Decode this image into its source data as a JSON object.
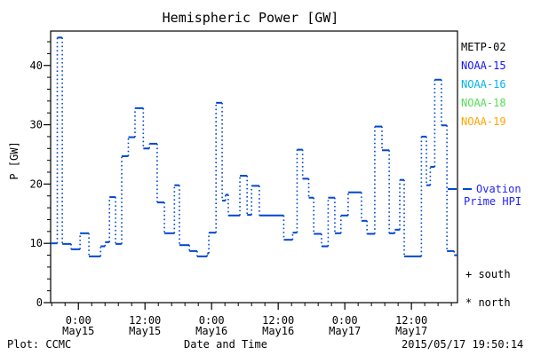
{
  "header": {
    "title": "Hemispheric Power [GW]"
  },
  "axes": {
    "ylabel": "P [GW]",
    "xlabel": "Date and Time"
  },
  "footer": {
    "plot_credit": "Plot: CCMC",
    "timestamp": "2015/05/17 19:50:14"
  },
  "legend": {
    "satellites": [
      {
        "label": "METP-02",
        "color": "#000000"
      },
      {
        "label": "NOAA-15",
        "color": "#1414ff"
      },
      {
        "label": "NOAA-16",
        "color": "#00b4f0"
      },
      {
        "label": "NOAA-18",
        "color": "#55dd55"
      },
      {
        "label": "NOAA-19",
        "color": "#ffa500"
      }
    ],
    "line_label_line1": "Ovation",
    "line_label_line2": "Prime HPI",
    "line_label_color": "#2222ff",
    "line_sample_color": "#0047d0",
    "south_marker": "+ south",
    "north_marker": "* north"
  },
  "chart_data": {
    "type": "line",
    "style": "histogram-step: solid horizontal levels with dotted vertical connectors",
    "title": "Hemispheric Power [GW]",
    "xlabel": "Date and Time",
    "ylabel": "P [GW]",
    "x_epoch": "hours from 2015-05-15 00:00",
    "xlim_hours": [
      -5.0,
      68.3
    ],
    "ylim": [
      0,
      45.8
    ],
    "y_ticks": [
      0,
      10,
      20,
      30,
      40
    ],
    "y_minor_step": 2,
    "x_minor_step_hours": 2.4,
    "grid": false,
    "x_ticks": [
      {
        "t": 0,
        "time": "0:00",
        "date": "May15"
      },
      {
        "t": 12,
        "time": "12:00",
        "date": "May15"
      },
      {
        "t": 24,
        "time": "0:00",
        "date": "May16"
      },
      {
        "t": 36,
        "time": "12:00",
        "date": "May16"
      },
      {
        "t": 48,
        "time": "0:00",
        "date": "May17"
      },
      {
        "t": 60,
        "time": "12:00",
        "date": "May17"
      }
    ],
    "series": [
      {
        "name": "Ovation Prime HPI",
        "color": "#0047d0",
        "t_end_hours": 68.3,
        "points_t_hours_vs_GW": [
          [
            -5.0,
            10.0
          ],
          [
            -3.8,
            44.7
          ],
          [
            -2.9,
            9.9
          ],
          [
            -1.3,
            9.0
          ],
          [
            0.3,
            11.7
          ],
          [
            1.9,
            7.8
          ],
          [
            4.0,
            9.5
          ],
          [
            4.8,
            10.2
          ],
          [
            5.6,
            17.8
          ],
          [
            6.7,
            9.9
          ],
          [
            7.8,
            24.7
          ],
          [
            9.0,
            27.9
          ],
          [
            10.2,
            32.8
          ],
          [
            11.7,
            26.0
          ],
          [
            12.8,
            26.8
          ],
          [
            14.2,
            16.9
          ],
          [
            15.5,
            11.7
          ],
          [
            17.3,
            19.8
          ],
          [
            18.2,
            9.7
          ],
          [
            20.0,
            8.7
          ],
          [
            21.4,
            7.8
          ],
          [
            23.2,
            8.3
          ],
          [
            23.5,
            11.8
          ],
          [
            24.8,
            33.7
          ],
          [
            25.9,
            17.2
          ],
          [
            26.5,
            18.2
          ],
          [
            27.0,
            14.7
          ],
          [
            29.1,
            21.4
          ],
          [
            30.4,
            14.8
          ],
          [
            31.2,
            19.7
          ],
          [
            32.6,
            14.7
          ],
          [
            37.0,
            10.6
          ],
          [
            38.6,
            11.8
          ],
          [
            39.4,
            25.8
          ],
          [
            40.4,
            20.9
          ],
          [
            41.5,
            17.7
          ],
          [
            42.4,
            11.6
          ],
          [
            43.8,
            9.5
          ],
          [
            45.0,
            17.7
          ],
          [
            46.2,
            11.7
          ],
          [
            47.3,
            14.7
          ],
          [
            48.6,
            18.6
          ],
          [
            51.0,
            13.8
          ],
          [
            52.0,
            11.6
          ],
          [
            53.4,
            29.7
          ],
          [
            54.7,
            25.7
          ],
          [
            56.0,
            11.7
          ],
          [
            57.0,
            12.3
          ],
          [
            57.9,
            20.7
          ],
          [
            58.7,
            7.8
          ],
          [
            61.8,
            28.0
          ],
          [
            62.7,
            19.8
          ],
          [
            63.4,
            22.9
          ],
          [
            64.2,
            37.6
          ],
          [
            65.4,
            29.9
          ],
          [
            66.4,
            8.7
          ],
          [
            67.7,
            8.0
          ]
        ]
      }
    ],
    "legend_entries": [
      "METP-02",
      "NOAA-15",
      "NOAA-16",
      "NOAA-18",
      "NOAA-19",
      "- Ovation Prime HPI",
      "+ south",
      "* north"
    ],
    "legend_position": "right"
  }
}
